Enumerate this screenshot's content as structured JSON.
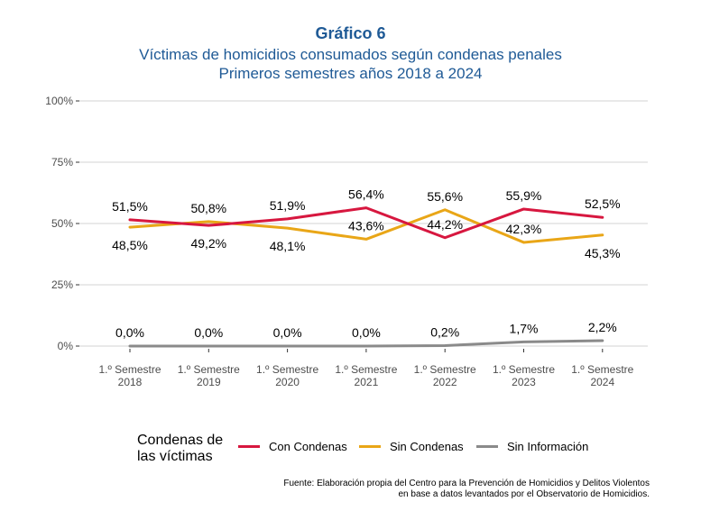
{
  "title": "Gráfico 6",
  "subtitle_line1": "Víctimas de homicidios consumados según condenas penales",
  "subtitle_line2": "Primeros semestres años 2018 a 2024",
  "legend_title_line1": "Condenas de",
  "legend_title_line2": "las víctimas",
  "source_line1": "Fuente: Elaboración propia del Centro para la Prevención de Homicidios y Delitos Violentos",
  "source_line2": "en base a datos levantados por el Observatorio de Homicidios.",
  "chart_data": {
    "type": "line",
    "title": "Gráfico 6",
    "categories": [
      [
        "1.º Semestre",
        "2018"
      ],
      [
        "1.º Semestre",
        "2019"
      ],
      [
        "1.º Semestre",
        "2020"
      ],
      [
        "1.º Semestre",
        "2021"
      ],
      [
        "1.º Semestre",
        "2022"
      ],
      [
        "1.º Semestre",
        "2023"
      ],
      [
        "1.º Semestre",
        "2024"
      ]
    ],
    "ylim": [
      0,
      100
    ],
    "yticks": [
      0,
      25,
      50,
      75,
      100
    ],
    "ytick_labels": [
      "0%",
      "25%",
      "50%",
      "75%",
      "100%"
    ],
    "grid": true,
    "legend_position": "bottom",
    "series": [
      {
        "name": "Con Condenas",
        "color": "#d7173f",
        "values": [
          51.5,
          49.2,
          51.9,
          56.4,
          44.2,
          55.9,
          52.5
        ],
        "labels": [
          "51,5%",
          null,
          "51,9%",
          "56,4%",
          null,
          "55,9%",
          "52,5%"
        ],
        "label_pos": [
          "above",
          null,
          "above",
          "above",
          null,
          "above",
          "above"
        ]
      },
      {
        "name": "Sin Condenas",
        "color": "#e9a617",
        "values": [
          48.5,
          50.8,
          48.1,
          43.6,
          55.6,
          42.3,
          45.3
        ],
        "labels": [
          "48,5%",
          null,
          "48,1%",
          "43,6%",
          null,
          "42,3%",
          "45,3%"
        ],
        "label_pos": [
          "below",
          null,
          "below",
          "above",
          null,
          "above",
          "below"
        ]
      },
      {
        "name": "Sin Información",
        "color": "#8a8a8a",
        "values": [
          0.0,
          0.0,
          0.0,
          0.0,
          0.2,
          1.7,
          2.2
        ],
        "labels": [
          "0,0%",
          "0,0%",
          "0,0%",
          "0,0%",
          "0,2%",
          "1,7%",
          "2,2%"
        ],
        "label_pos": [
          "above",
          "above",
          "above",
          "above",
          "above",
          "above",
          "above"
        ]
      }
    ],
    "extra_labels": [
      {
        "text": "50,8%",
        "category_index": 1,
        "value": 50.8,
        "pos": "above"
      },
      {
        "text": "49,2%",
        "category_index": 1,
        "value": 49.2,
        "pos": "below"
      },
      {
        "text": "55,6%",
        "category_index": 4,
        "value": 55.6,
        "pos": "above"
      },
      {
        "text": "44,2%",
        "category_index": 4,
        "value": 44.2,
        "pos": "above"
      }
    ]
  }
}
